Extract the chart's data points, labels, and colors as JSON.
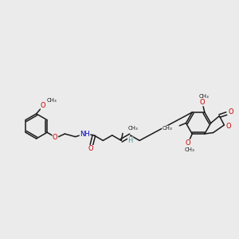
{
  "bg_color": "#ebebeb",
  "fig_size": [
    3.0,
    3.0
  ],
  "dpi": 100,
  "bond_color": "#1a1a1a",
  "bond_lw": 1.1,
  "atom_colors": {
    "O": "#cc0000",
    "N": "#0000bb",
    "H_teal": "#4a9999",
    "C": "#1a1a1a"
  },
  "xlim": [
    0,
    10
  ],
  "ylim": [
    1.5,
    8.5
  ]
}
